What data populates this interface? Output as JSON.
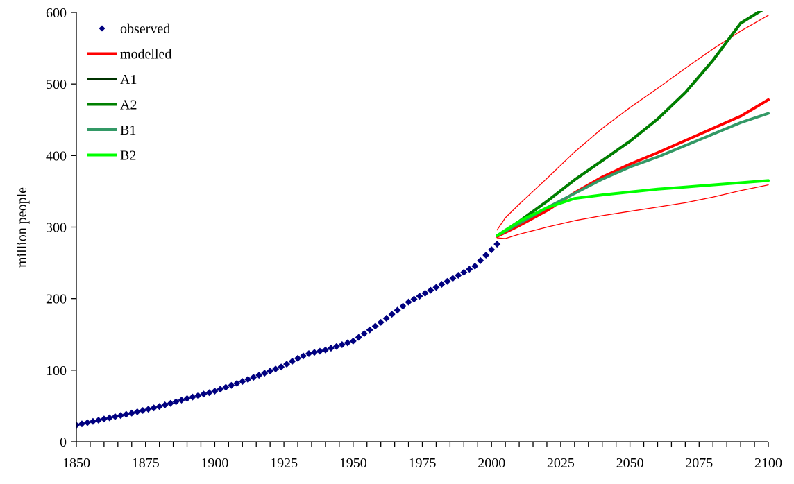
{
  "chart_data": {
    "type": "line",
    "title": "",
    "xlabel": "",
    "ylabel": "million people",
    "xlim": [
      1850,
      2100
    ],
    "ylim": [
      0,
      600
    ],
    "x_ticks": [
      1850,
      1875,
      1900,
      1925,
      1950,
      1975,
      2000,
      2025,
      2050,
      2075,
      2100
    ],
    "y_ticks": [
      0,
      100,
      200,
      300,
      400,
      500,
      600
    ],
    "grid": false,
    "legend_position": "top-left",
    "series": [
      {
        "name": "observed",
        "style": "markers",
        "color": "#000080",
        "x": [
          1850,
          1852,
          1854,
          1856,
          1858,
          1860,
          1862,
          1864,
          1866,
          1868,
          1870,
          1872,
          1874,
          1876,
          1878,
          1880,
          1882,
          1884,
          1886,
          1888,
          1890,
          1892,
          1894,
          1896,
          1898,
          1900,
          1902,
          1904,
          1906,
          1908,
          1910,
          1912,
          1914,
          1916,
          1918,
          1920,
          1922,
          1924,
          1926,
          1928,
          1930,
          1932,
          1934,
          1936,
          1938,
          1940,
          1942,
          1944,
          1946,
          1948,
          1950,
          1952,
          1954,
          1956,
          1958,
          1960,
          1962,
          1964,
          1966,
          1968,
          1970,
          1972,
          1974,
          1976,
          1978,
          1980,
          1982,
          1984,
          1986,
          1988,
          1990,
          1992,
          1994,
          1996,
          1998,
          2000,
          2002
        ],
        "values": [
          23.2,
          24.9,
          26.6,
          28.3,
          30.0,
          31.7,
          33.3,
          35.0,
          36.6,
          38.3,
          40.0,
          41.8,
          43.6,
          45.4,
          47.3,
          49.2,
          51.4,
          53.6,
          55.8,
          58.1,
          60.3,
          62.4,
          64.5,
          66.6,
          68.6,
          70.7,
          73.4,
          76.1,
          78.8,
          81.5,
          84.2,
          87.1,
          90.0,
          92.9,
          95.8,
          98.7,
          101.6,
          104.5,
          108.5,
          112.5,
          116.5,
          119.8,
          123.1,
          124.8,
          126.5,
          128.2,
          130.7,
          133.2,
          135.7,
          138.2,
          140.7,
          145.9,
          151.1,
          156.3,
          161.5,
          166.8,
          172.5,
          178.2,
          183.8,
          189.5,
          195.2,
          199.3,
          203.4,
          207.5,
          211.7,
          215.8,
          220.0,
          224.2,
          228.4,
          232.6,
          236.8,
          241.1,
          245.4,
          253.1,
          260.8,
          268.4,
          276.1
        ]
      },
      {
        "name": "modelled",
        "color": "#ff0000",
        "width": 4,
        "x": [
          2002,
          2010,
          2020,
          2030,
          2040,
          2050,
          2060,
          2070,
          2080,
          2090,
          2100
        ],
        "values": [
          287,
          302,
          323,
          348,
          370,
          388,
          404,
          421,
          438,
          455,
          478
        ]
      },
      {
        "name": "",
        "color": "#ff0000",
        "width": 1.3,
        "x": [
          2002,
          2005,
          2010,
          2020,
          2030,
          2040,
          2050,
          2060,
          2070,
          2080,
          2090,
          2100
        ],
        "values": [
          296,
          313,
          332,
          368,
          405,
          438,
          467,
          494,
          522,
          549,
          574,
          596
        ]
      },
      {
        "name": "",
        "color": "#ff0000",
        "width": 1.3,
        "x": [
          2002,
          2005,
          2010,
          2020,
          2030,
          2040,
          2050,
          2060,
          2070,
          2080,
          2090,
          2100
        ],
        "values": [
          285,
          284,
          290,
          300,
          309,
          316,
          322,
          328,
          334,
          342,
          351,
          359
        ]
      },
      {
        "name": "A1",
        "color": "#003300",
        "width": 4,
        "x": [
          2002,
          2010,
          2020,
          2030,
          2040,
          2050,
          2060,
          2070,
          2080,
          2090,
          2098
        ],
        "values": [
          288,
          308,
          336,
          366,
          393,
          420,
          451,
          488,
          533,
          585,
          604
        ]
      },
      {
        "name": "A2",
        "color": "#008000",
        "width": 4,
        "x": [
          2002,
          2010,
          2020,
          2030,
          2040,
          2050,
          2060,
          2070,
          2080,
          2090,
          2098
        ],
        "values": [
          288,
          308,
          336,
          366,
          393,
          420,
          451,
          488,
          533,
          585,
          604
        ]
      },
      {
        "name": "B1",
        "color": "#339966",
        "width": 4,
        "x": [
          2002,
          2010,
          2020,
          2030,
          2040,
          2050,
          2060,
          2070,
          2080,
          2090,
          2100
        ],
        "values": [
          288,
          305,
          327,
          347,
          367,
          384,
          398,
          414,
          430,
          446,
          459
        ]
      },
      {
        "name": "B2",
        "color": "#00ff00",
        "width": 4,
        "x": [
          2002,
          2010,
          2020,
          2030,
          2040,
          2050,
          2060,
          2070,
          2080,
          2090,
          2100
        ],
        "values": [
          288,
          308,
          327,
          340,
          345,
          349,
          353,
          356,
          359,
          362,
          365
        ]
      }
    ],
    "legend": [
      {
        "label": "observed",
        "kind": "marker",
        "color": "#000080"
      },
      {
        "label": "modelled",
        "kind": "line",
        "color": "#ff0000"
      },
      {
        "label": "A1",
        "kind": "line",
        "color": "#003300"
      },
      {
        "label": "A2",
        "kind": "line",
        "color": "#008000"
      },
      {
        "label": "B1",
        "kind": "line",
        "color": "#339966"
      },
      {
        "label": "B2",
        "kind": "line",
        "color": "#00ff00"
      }
    ]
  }
}
